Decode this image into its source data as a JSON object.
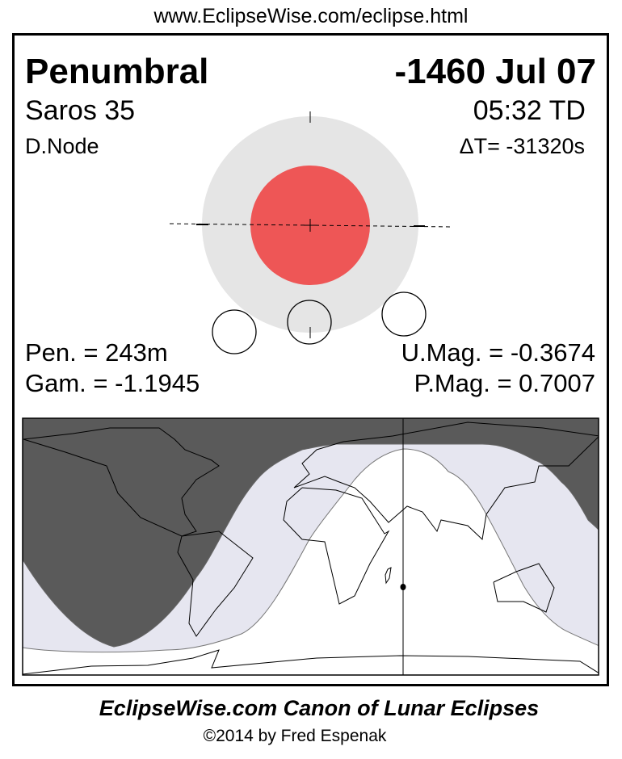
{
  "header": {
    "url": "www.EclipseWise.com/eclipse.html"
  },
  "eclipse": {
    "type": "Penumbral",
    "date": "-1460 Jul 07",
    "saros": "Saros  35",
    "time": "05:32 TD",
    "node": "D.Node",
    "delta_t": "ΔT= -31320s",
    "pen_duration": "Pen. = 243m",
    "gamma": "Gam. = -1.1945",
    "u_mag": "U.Mag. = -0.3674",
    "p_mag": "P.Mag. = 0.7007"
  },
  "colors": {
    "penumbra": "#e5e5e5",
    "umbra": "#ee5656",
    "map_night": "#5a5a5a",
    "map_penumbral_zone": "#e6e6f0",
    "map_visible": "#ffffff"
  },
  "footer": {
    "title": "EclipseWise.com Canon of Lunar Eclipses",
    "copyright": "©2014 by Fred Espenak"
  }
}
